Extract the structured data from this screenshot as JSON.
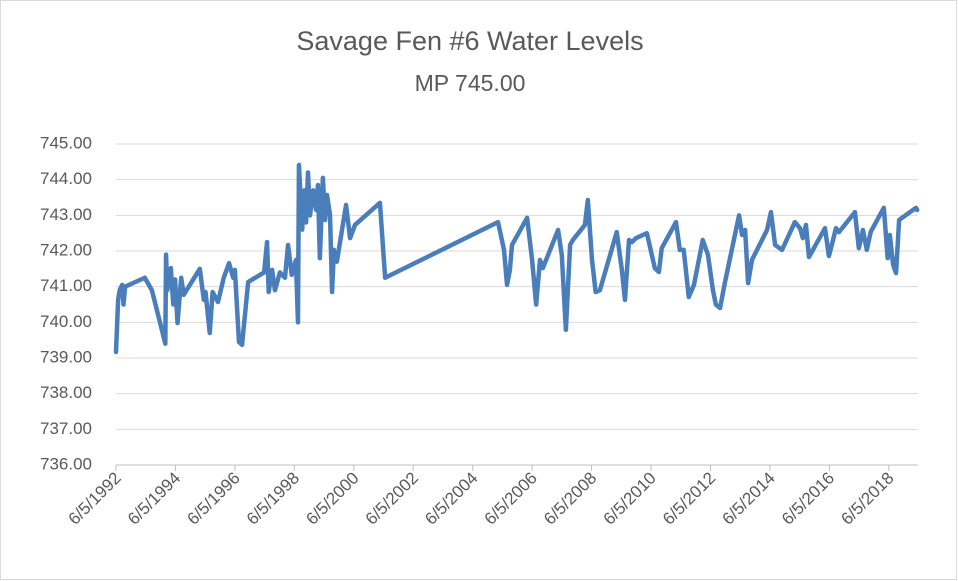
{
  "chart_data": {
    "type": "line",
    "title": "Savage Fen #6 Water Levels",
    "subtitle": "MP 745.00",
    "color": "#4a7ebb",
    "grid": true,
    "xlim": [
      "6/5/1992",
      "5/30/2019"
    ],
    "xticks": [
      "6/5/1992",
      "6/5/1994",
      "6/5/1996",
      "6/5/1998",
      "6/5/2000",
      "6/5/2002",
      "6/5/2004",
      "6/5/2006",
      "6/5/2008",
      "6/5/2010",
      "6/5/2012",
      "6/5/2014",
      "6/5/2016",
      "6/5/2018"
    ],
    "ylim": [
      736,
      745
    ],
    "yticks": [
      {
        "value": 736,
        "label": "736.00"
      },
      {
        "value": 737,
        "label": "737.00"
      },
      {
        "value": 738,
        "label": "738.00"
      },
      {
        "value": 739,
        "label": "739.00"
      },
      {
        "value": 740,
        "label": "740.00"
      },
      {
        "value": 741,
        "label": "741.00"
      },
      {
        "value": 742,
        "label": "742.00"
      },
      {
        "value": 743,
        "label": "743.00"
      },
      {
        "value": 744,
        "label": "744.00"
      },
      {
        "value": 745,
        "label": "745.00"
      }
    ],
    "x": [
      "6/5/1992",
      "7/1/1992",
      "7/20/1992",
      "8/20/1992",
      "9/5/1992",
      "9/25/1992",
      "5/25/1993",
      "8/20/1993",
      "2/1/1994",
      "2/10/1994",
      "2/25/1994",
      "4/10/1994",
      "5/10/1994",
      "6/1/1994",
      "7/1/1994",
      "8/15/1994",
      "9/15/1994",
      "4/1/1995",
      "5/20/1995",
      "6/10/1995",
      "8/1/1995",
      "9/5/1995",
      "11/10/1995",
      "1/20/1996",
      "3/25/1996",
      "5/15/1996",
      "6/5/1996",
      "7/25/1996",
      "9/1/1996",
      "11/15/1996",
      "5/30/1997",
      "7/5/1997",
      "7/25/1997",
      "9/5/1997",
      "10/10/1997",
      "12/10/1997",
      "2/10/1998",
      "3/20/1998",
      "5/5/1998",
      "6/25/1998",
      "7/20/1998",
      "8/1/1998",
      "9/10/1998",
      "10/5/1998",
      "10/28/1998",
      "11/20/1998",
      "12/15/1998",
      "1/22/1999",
      "3/1/1999",
      "3/22/1999",
      "4/15/1999",
      "5/22/1999",
      "6/18/1999",
      "7/12/1999",
      "8/18/1999",
      "9/12/1999",
      "10/5/1999",
      "11/10/1999",
      "3/2/2000",
      "4/20/2000",
      "6/20/2000",
      "4/22/2001",
      "6/25/2001",
      "4/12/2005",
      "6/25/2005",
      "8/1/2005",
      "9/5/2005",
      "10/1/2005",
      "4/5/2006",
      "6/5/2006",
      "7/25/2006",
      "9/10/2006",
      "10/15/2006",
      "4/20/2007",
      "6/5/2007",
      "7/25/2007",
      "9/15/2007",
      "10/20/2007",
      "3/15/2008",
      "4/20/2008",
      "6/10/2008",
      "7/25/2008",
      "9/15/2008",
      "4/10/2009",
      "6/12/2009",
      "7/20/2009",
      "9/8/2009",
      "10/15/2009",
      "12/1/2009",
      "4/15/2010",
      "7/22/2010",
      "9/10/2010",
      "10/15/2010",
      "4/8/2011",
      "5/25/2011",
      "7/12/2011",
      "9/12/2011",
      "11/15/2011",
      "3/2/2012",
      "5/5/2012",
      "7/5/2012",
      "8/10/2012",
      "10/1/2012",
      "11/28/2012",
      "5/22/2013",
      "6/28/2013",
      "8/5/2013",
      "9/10/2013",
      "10/28/2013",
      "5/1/2014",
      "6/18/2014",
      "8/8/2014",
      "11/1/2014",
      "4/8/2015",
      "6/10/2015",
      "7/15/2015",
      "8/22/2015",
      "9/28/2015",
      "4/12/2016",
      "5/30/2016",
      "7/5/2016",
      "8/25/2016",
      "10/1/2016",
      "4/15/2017",
      "6/2/2017",
      "7/22/2017",
      "9/8/2017",
      "10/25/2017",
      "4/5/2018",
      "5/22/2018",
      "6/18/2018",
      "7/28/2018",
      "9/2/2018",
      "10/10/2018",
      "5/5/2019",
      "5/20/2019"
    ],
    "values": [
      739.17,
      740.63,
      740.9,
      741.05,
      740.5,
      741.0,
      741.25,
      740.9,
      739.4,
      741.9,
      740.9,
      741.52,
      740.5,
      741.2,
      739.98,
      741.25,
      740.77,
      741.5,
      740.63,
      740.85,
      739.7,
      740.85,
      740.57,
      741.25,
      741.66,
      741.25,
      741.47,
      739.45,
      739.37,
      741.13,
      741.4,
      742.25,
      740.85,
      741.47,
      740.9,
      741.4,
      741.25,
      742.17,
      741.33,
      741.75,
      740.0,
      744.41,
      742.6,
      743.7,
      742.8,
      744.2,
      743.0,
      743.7,
      743.15,
      743.85,
      741.8,
      744.05,
      742.87,
      743.57,
      743.0,
      740.85,
      742.03,
      741.7,
      743.29,
      742.36,
      742.73,
      743.35,
      741.25,
      742.81,
      742.03,
      741.05,
      741.47,
      742.17,
      742.93,
      741.75,
      740.5,
      741.75,
      741.52,
      742.59,
      741.89,
      739.79,
      742.17,
      742.31,
      742.73,
      743.43,
      741.75,
      740.85,
      740.9,
      742.53,
      741.47,
      740.63,
      742.31,
      742.25,
      742.36,
      742.5,
      741.52,
      741.41,
      742.08,
      742.81,
      742.03,
      742.03,
      740.71,
      741.05,
      742.31,
      741.89,
      740.9,
      740.5,
      740.4,
      741.1,
      743.0,
      742.45,
      742.59,
      741.1,
      741.75,
      742.59,
      743.09,
      742.17,
      742.03,
      742.81,
      742.64,
      742.36,
      742.73,
      741.83,
      742.64,
      741.86,
      742.17,
      742.64,
      742.53,
      743.09,
      742.08,
      742.59,
      742.03,
      742.53,
      743.21,
      741.8,
      742.45,
      741.61,
      741.38,
      742.87,
      743.21,
      743.15
    ]
  }
}
